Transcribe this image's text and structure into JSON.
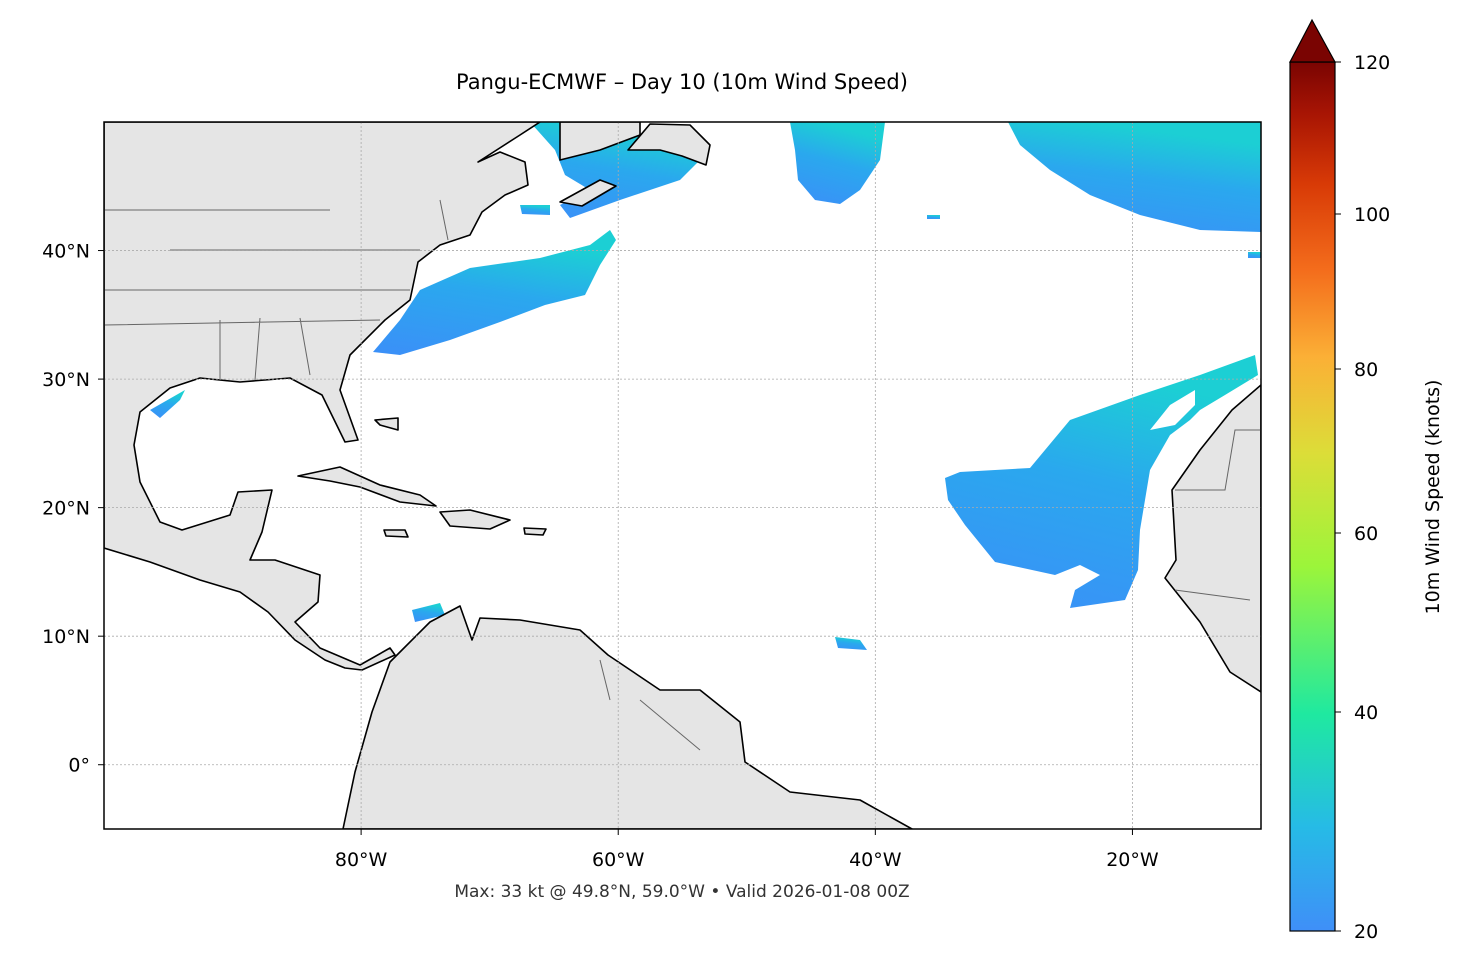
{
  "title": "Pangu-ECMWF – Day 10 (10m Wind Speed)",
  "footer": "Max: 33 kt @ 49.8°N, 59.0°W • Valid 2026-01-08 00Z",
  "map": {
    "xlim": [
      -100,
      -10
    ],
    "ylim": [
      -5,
      50
    ],
    "xticks": [
      {
        "value": -80,
        "label": "80°W"
      },
      {
        "value": -60,
        "label": "60°W"
      },
      {
        "value": -40,
        "label": "40°W"
      },
      {
        "value": -20,
        "label": "20°W"
      }
    ],
    "yticks": [
      {
        "value": 0,
        "label": "0°"
      },
      {
        "value": 10,
        "label": "10°N"
      },
      {
        "value": 20,
        "label": "20°N"
      },
      {
        "value": 30,
        "label": "30°N"
      },
      {
        "value": 40,
        "label": "40°N"
      }
    ],
    "grid": true
  },
  "colorbar": {
    "label": "10m Wind Speed (knots)",
    "lim": [
      20,
      120
    ],
    "ticks": [
      20,
      40,
      60,
      80,
      100,
      120
    ]
  }
}
